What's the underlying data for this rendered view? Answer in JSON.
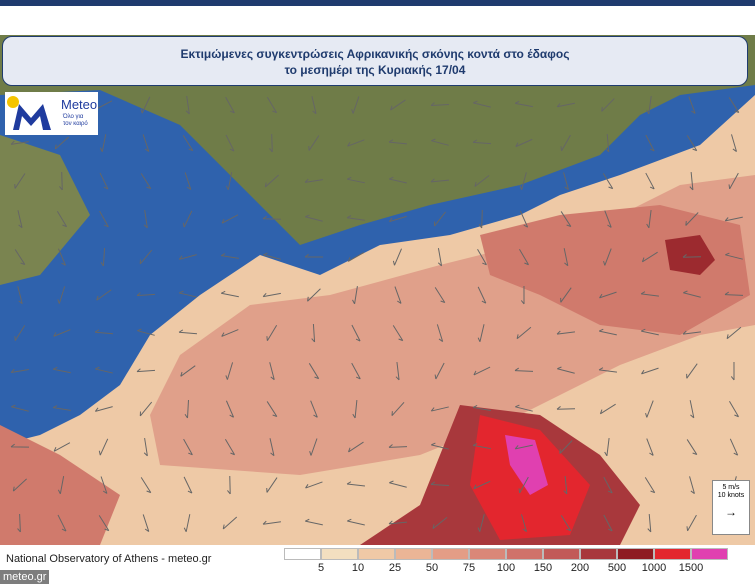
{
  "title": {
    "line1": "Εκτιμώμενες συγκεντρώσεις Αφρικανικής σκόνης κοντά στο έδαφος",
    "line2": "το μεσημέρι της Κυριακής 17/04"
  },
  "logo": {
    "name": "Meteo",
    "tagline_line1": "Όλο για",
    "tagline_line2": "τον καιρό"
  },
  "wind_key": {
    "line1": "5 m/s",
    "line2": "10 knots"
  },
  "footer": {
    "source": "National Observatory of Athens - meteo.gr",
    "badge": "meteo.gr"
  },
  "color_scale": {
    "colors": [
      "#ffffff",
      "#f3dfc0",
      "#f0c9a6",
      "#ebb596",
      "#e49d86",
      "#da8778",
      "#d0726a",
      "#c25a58",
      "#a8383c",
      "#8e1b22",
      "#e3262e",
      "#e040b0"
    ],
    "labels": [
      "5",
      "10",
      "25",
      "50",
      "75",
      "100",
      "150",
      "200",
      "500",
      "1000",
      "1500"
    ]
  }
}
